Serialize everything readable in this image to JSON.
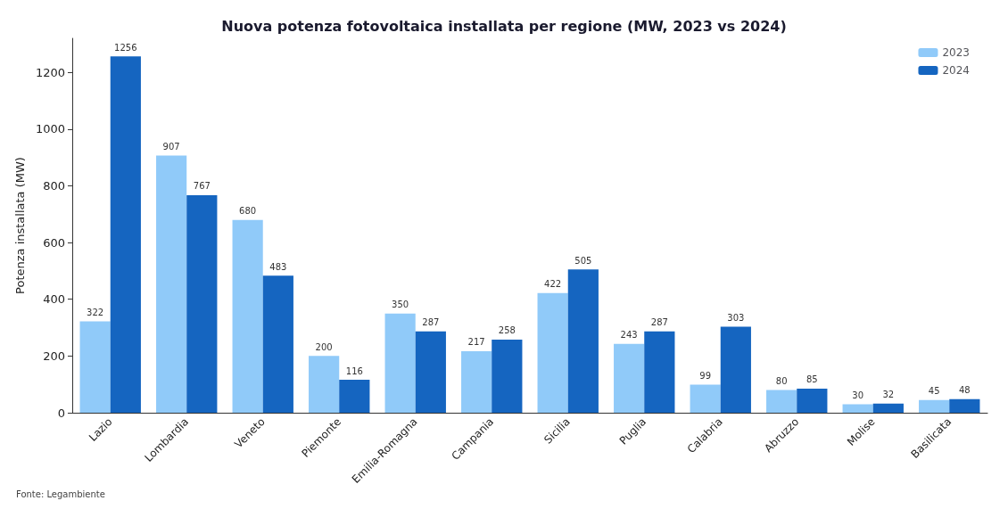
{
  "chart_data": {
    "type": "bar",
    "title": "Nuova potenza fotovoltaica installata per regione (MW, 2023 vs 2024)",
    "ylabel": "Potenza installata (MW)",
    "categories": [
      "Lazio",
      "Lombardia",
      "Veneto",
      "Piemonte",
      "Emilia-Romagna",
      "Campania",
      "Sicilia",
      "Puglia",
      "Calabria",
      "Abruzzo",
      "Molise",
      "Basilicata"
    ],
    "series": [
      {
        "name": "2023",
        "color": "#90caf9",
        "values": [
          322,
          907,
          680,
          200,
          350,
          217,
          422,
          243,
          99,
          80,
          30,
          45
        ]
      },
      {
        "name": "2024",
        "color": "#1565c0",
        "values": [
          1256,
          767,
          483,
          116,
          287,
          258,
          505,
          287,
          303,
          85,
          32,
          48
        ]
      }
    ],
    "ylim": [
      0,
      1320
    ],
    "yticks": [
      0,
      200,
      400,
      600,
      800,
      1000,
      1200
    ],
    "grid": false,
    "legend": "top right",
    "data_labels": true,
    "annotations": [
      "Fonte: Legambiente"
    ]
  }
}
